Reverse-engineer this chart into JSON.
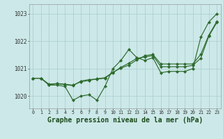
{
  "bg_color": "#cce8e8",
  "grid_color": "#aacccc",
  "line_color": "#2d6b2d",
  "xlabel": "Graphe pression niveau de la mer (hPa)",
  "xlabel_fontsize": 7,
  "yticks": [
    1020,
    1021,
    1022,
    1023
  ],
  "xtick_labels": [
    "0",
    "1",
    "2",
    "3",
    "4",
    "5",
    "6",
    "7",
    "8",
    "9",
    "10",
    "11",
    "12",
    "13",
    "14",
    "15",
    "16",
    "17",
    "18",
    "19",
    "20",
    "21",
    "22",
    "23"
  ],
  "ylim": [
    1019.55,
    1023.35
  ],
  "xlim": [
    -0.5,
    23.5
  ],
  "line1_x": [
    0,
    1,
    2,
    3,
    4,
    5,
    6,
    7,
    8,
    9,
    10,
    11,
    12,
    13,
    14,
    15,
    16,
    17,
    18,
    19,
    20,
    21,
    22,
    23
  ],
  "line1_y": [
    1020.65,
    1020.65,
    1020.4,
    1020.4,
    1020.35,
    1019.85,
    1020.0,
    1020.05,
    1019.85,
    1020.35,
    1021.0,
    1021.3,
    1021.7,
    1021.4,
    1021.3,
    1021.4,
    1020.85,
    1020.9,
    1020.9,
    1020.9,
    1021.0,
    1022.15,
    1022.7,
    1023.0
  ],
  "line2_x": [
    0,
    1,
    2,
    3,
    4,
    5,
    6,
    7,
    8,
    9,
    10,
    11,
    12,
    13,
    14,
    15,
    16,
    17,
    18,
    19,
    20,
    21,
    22,
    23
  ],
  "line2_y": [
    1020.65,
    1020.65,
    1020.42,
    1020.45,
    1020.42,
    1020.38,
    1020.55,
    1020.6,
    1020.62,
    1020.65,
    1020.85,
    1021.05,
    1021.2,
    1021.38,
    1021.42,
    1021.48,
    1021.07,
    1021.07,
    1021.07,
    1021.07,
    1021.12,
    1021.38,
    1022.18,
    1022.68
  ],
  "line3_x": [
    0,
    1,
    2,
    3,
    4,
    5,
    6,
    7,
    8,
    9,
    10,
    11,
    12,
    13,
    14,
    15,
    16,
    17,
    18,
    19,
    20,
    21,
    22,
    23
  ],
  "line3_y": [
    1020.65,
    1020.65,
    1020.43,
    1020.46,
    1020.43,
    1020.4,
    1020.52,
    1020.57,
    1020.63,
    1020.67,
    1020.87,
    1021.02,
    1021.13,
    1021.32,
    1021.47,
    1021.52,
    1021.17,
    1021.17,
    1021.17,
    1021.17,
    1021.17,
    1021.52,
    1022.22,
    1022.72
  ]
}
